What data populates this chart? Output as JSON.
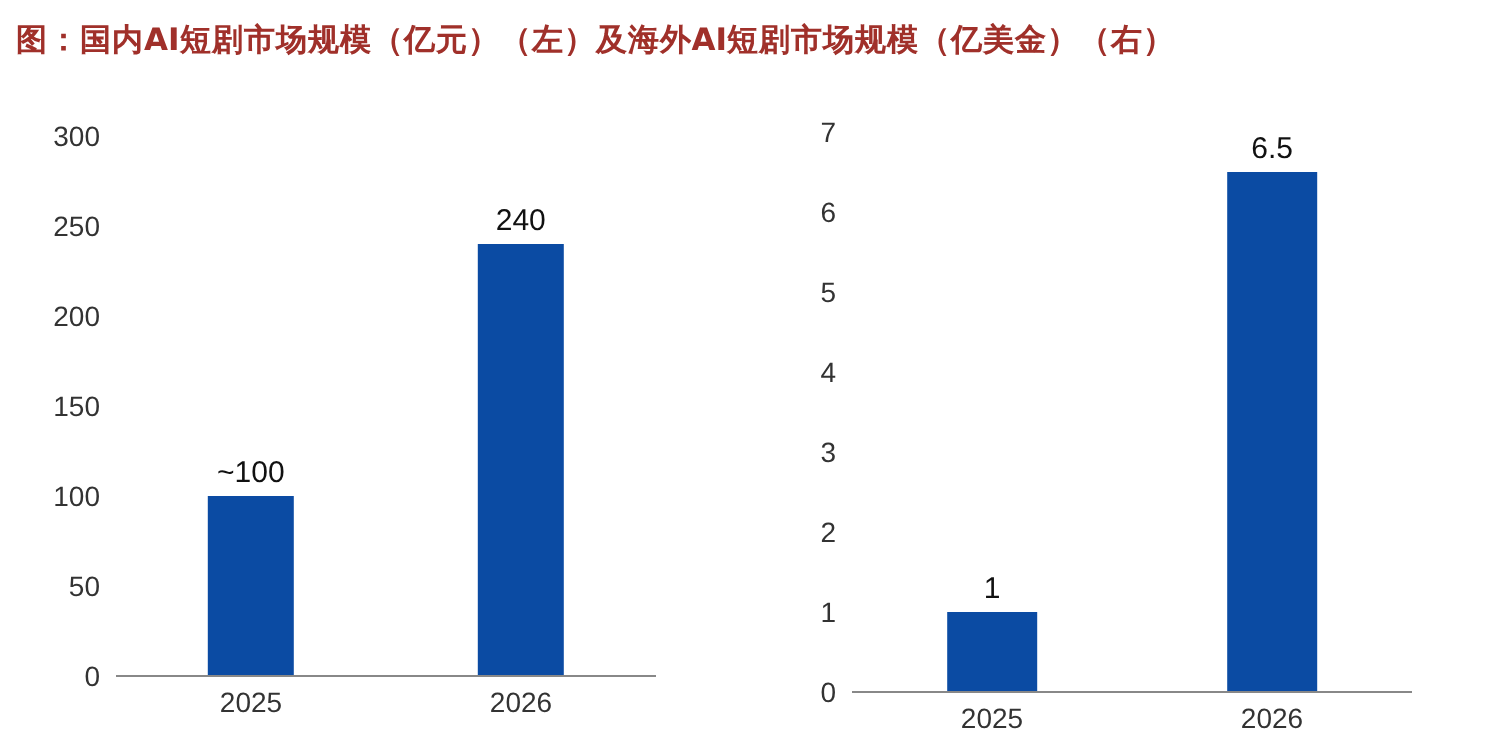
{
  "chart_data": [
    {
      "type": "bar",
      "title": "图：国内AI短剧市场规模（亿元）（左）及海外AI短剧市场规模（亿美金）（右）",
      "categories": [
        "2025",
        "2026"
      ],
      "values": [
        100,
        240
      ],
      "value_labels": [
        "~100",
        "240"
      ],
      "color": "#0b4ba3",
      "ylim": [
        0,
        300
      ],
      "yticks": [
        0,
        50,
        100,
        150,
        200,
        250,
        300
      ],
      "grid": false,
      "legend": false
    },
    {
      "type": "bar",
      "categories": [
        "2025",
        "2026"
      ],
      "values": [
        1,
        6.5
      ],
      "data_labels": true,
      "color": "#0b4ba3",
      "ylim": [
        0,
        7
      ],
      "yticks": [
        0,
        1,
        2,
        3,
        4,
        5,
        6,
        7
      ],
      "grid": false,
      "legend": false
    }
  ]
}
